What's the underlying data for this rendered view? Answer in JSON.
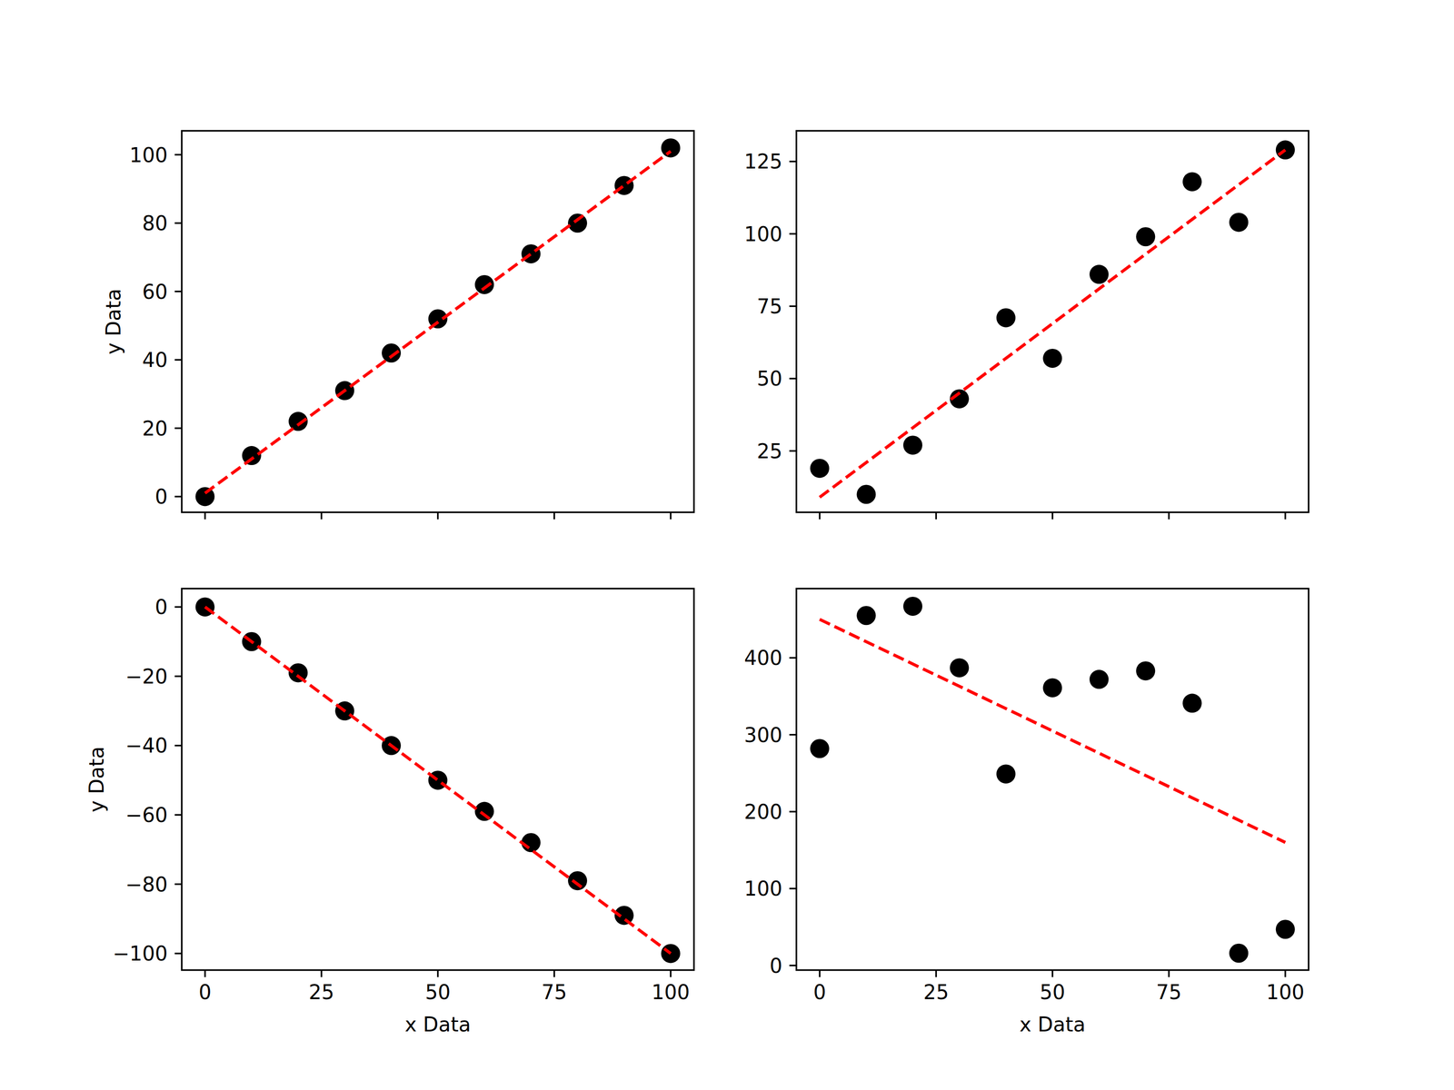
{
  "chart_data": [
    {
      "type": "scatter",
      "y_label": "y Data",
      "tick_labels": "y",
      "x": [
        0,
        10,
        20,
        30,
        40,
        50,
        60,
        70,
        80,
        90,
        100
      ],
      "xlim": [
        -5,
        105
      ],
      "xticks": [
        0,
        25,
        50,
        75,
        100
      ],
      "ylim": [
        -4.6,
        107
      ],
      "yticks": [
        0,
        20,
        40,
        60,
        80,
        100
      ],
      "series": [
        {
          "type": "scatter",
          "marker": "circle",
          "color": "#000000",
          "values": [
            0,
            12,
            22,
            31,
            42,
            52,
            62,
            71,
            80,
            91,
            102
          ]
        },
        {
          "type": "line",
          "line_style": "dashed",
          "color": "#ff0000",
          "x": [
            0,
            100
          ],
          "values": [
            1,
            101
          ]
        }
      ]
    },
    {
      "type": "scatter",
      "tick_labels": "y",
      "x": [
        0,
        10,
        20,
        30,
        40,
        50,
        60,
        70,
        80,
        90,
        100
      ],
      "xlim": [
        -5,
        105
      ],
      "xticks": [
        0,
        25,
        50,
        75,
        100
      ],
      "ylim": [
        3.8,
        135.6
      ],
      "yticks": [
        25,
        50,
        75,
        100,
        125
      ],
      "series": [
        {
          "type": "scatter",
          "marker": "circle",
          "color": "#000000",
          "values": [
            19,
            10,
            27,
            43,
            71,
            57,
            86,
            99,
            118,
            104,
            129
          ]
        },
        {
          "type": "line",
          "line_style": "dashed",
          "color": "#ff0000",
          "x": [
            0,
            100
          ],
          "values": [
            9,
            129
          ]
        }
      ]
    },
    {
      "type": "scatter",
      "x_label": "x Data",
      "y_label": "y Data",
      "tick_labels": true,
      "x": [
        0,
        10,
        20,
        30,
        40,
        50,
        60,
        70,
        80,
        90,
        100
      ],
      "xlim": [
        -5,
        105
      ],
      "xticks": [
        0,
        25,
        50,
        75,
        100
      ],
      "ylim": [
        -104.8,
        5.3
      ],
      "yticks": [
        {
          "value": -100,
          "label": "−100"
        },
        {
          "value": -80,
          "label": "−80"
        },
        {
          "value": -60,
          "label": "−60"
        },
        {
          "value": -40,
          "label": "−40"
        },
        {
          "value": -20,
          "label": "−20"
        },
        0
      ],
      "series": [
        {
          "type": "scatter",
          "marker": "circle",
          "color": "#000000",
          "values": [
            0,
            -10,
            -19,
            -30,
            -40,
            -50,
            -59,
            -68,
            -79,
            -89,
            -100
          ]
        },
        {
          "type": "line",
          "line_style": "dashed",
          "color": "#ff0000",
          "x": [
            0,
            100
          ],
          "values": [
            0,
            -100
          ]
        }
      ]
    },
    {
      "type": "scatter",
      "x_label": "x Data",
      "tick_labels": true,
      "x": [
        0,
        10,
        20,
        30,
        40,
        50,
        60,
        70,
        80,
        90,
        100
      ],
      "xlim": [
        -5,
        105
      ],
      "xticks": [
        0,
        25,
        50,
        75,
        100
      ],
      "ylim": [
        -6,
        490
      ],
      "yticks": [
        0,
        100,
        200,
        300,
        400
      ],
      "series": [
        {
          "type": "scatter",
          "marker": "circle",
          "color": "#000000",
          "values": [
            282,
            455,
            467,
            387,
            249,
            361,
            372,
            383,
            341,
            16,
            47
          ]
        },
        {
          "type": "line",
          "line_style": "dashed",
          "color": "#ff0000",
          "x": [
            0,
            100
          ],
          "values": [
            450,
            160
          ]
        }
      ]
    }
  ]
}
